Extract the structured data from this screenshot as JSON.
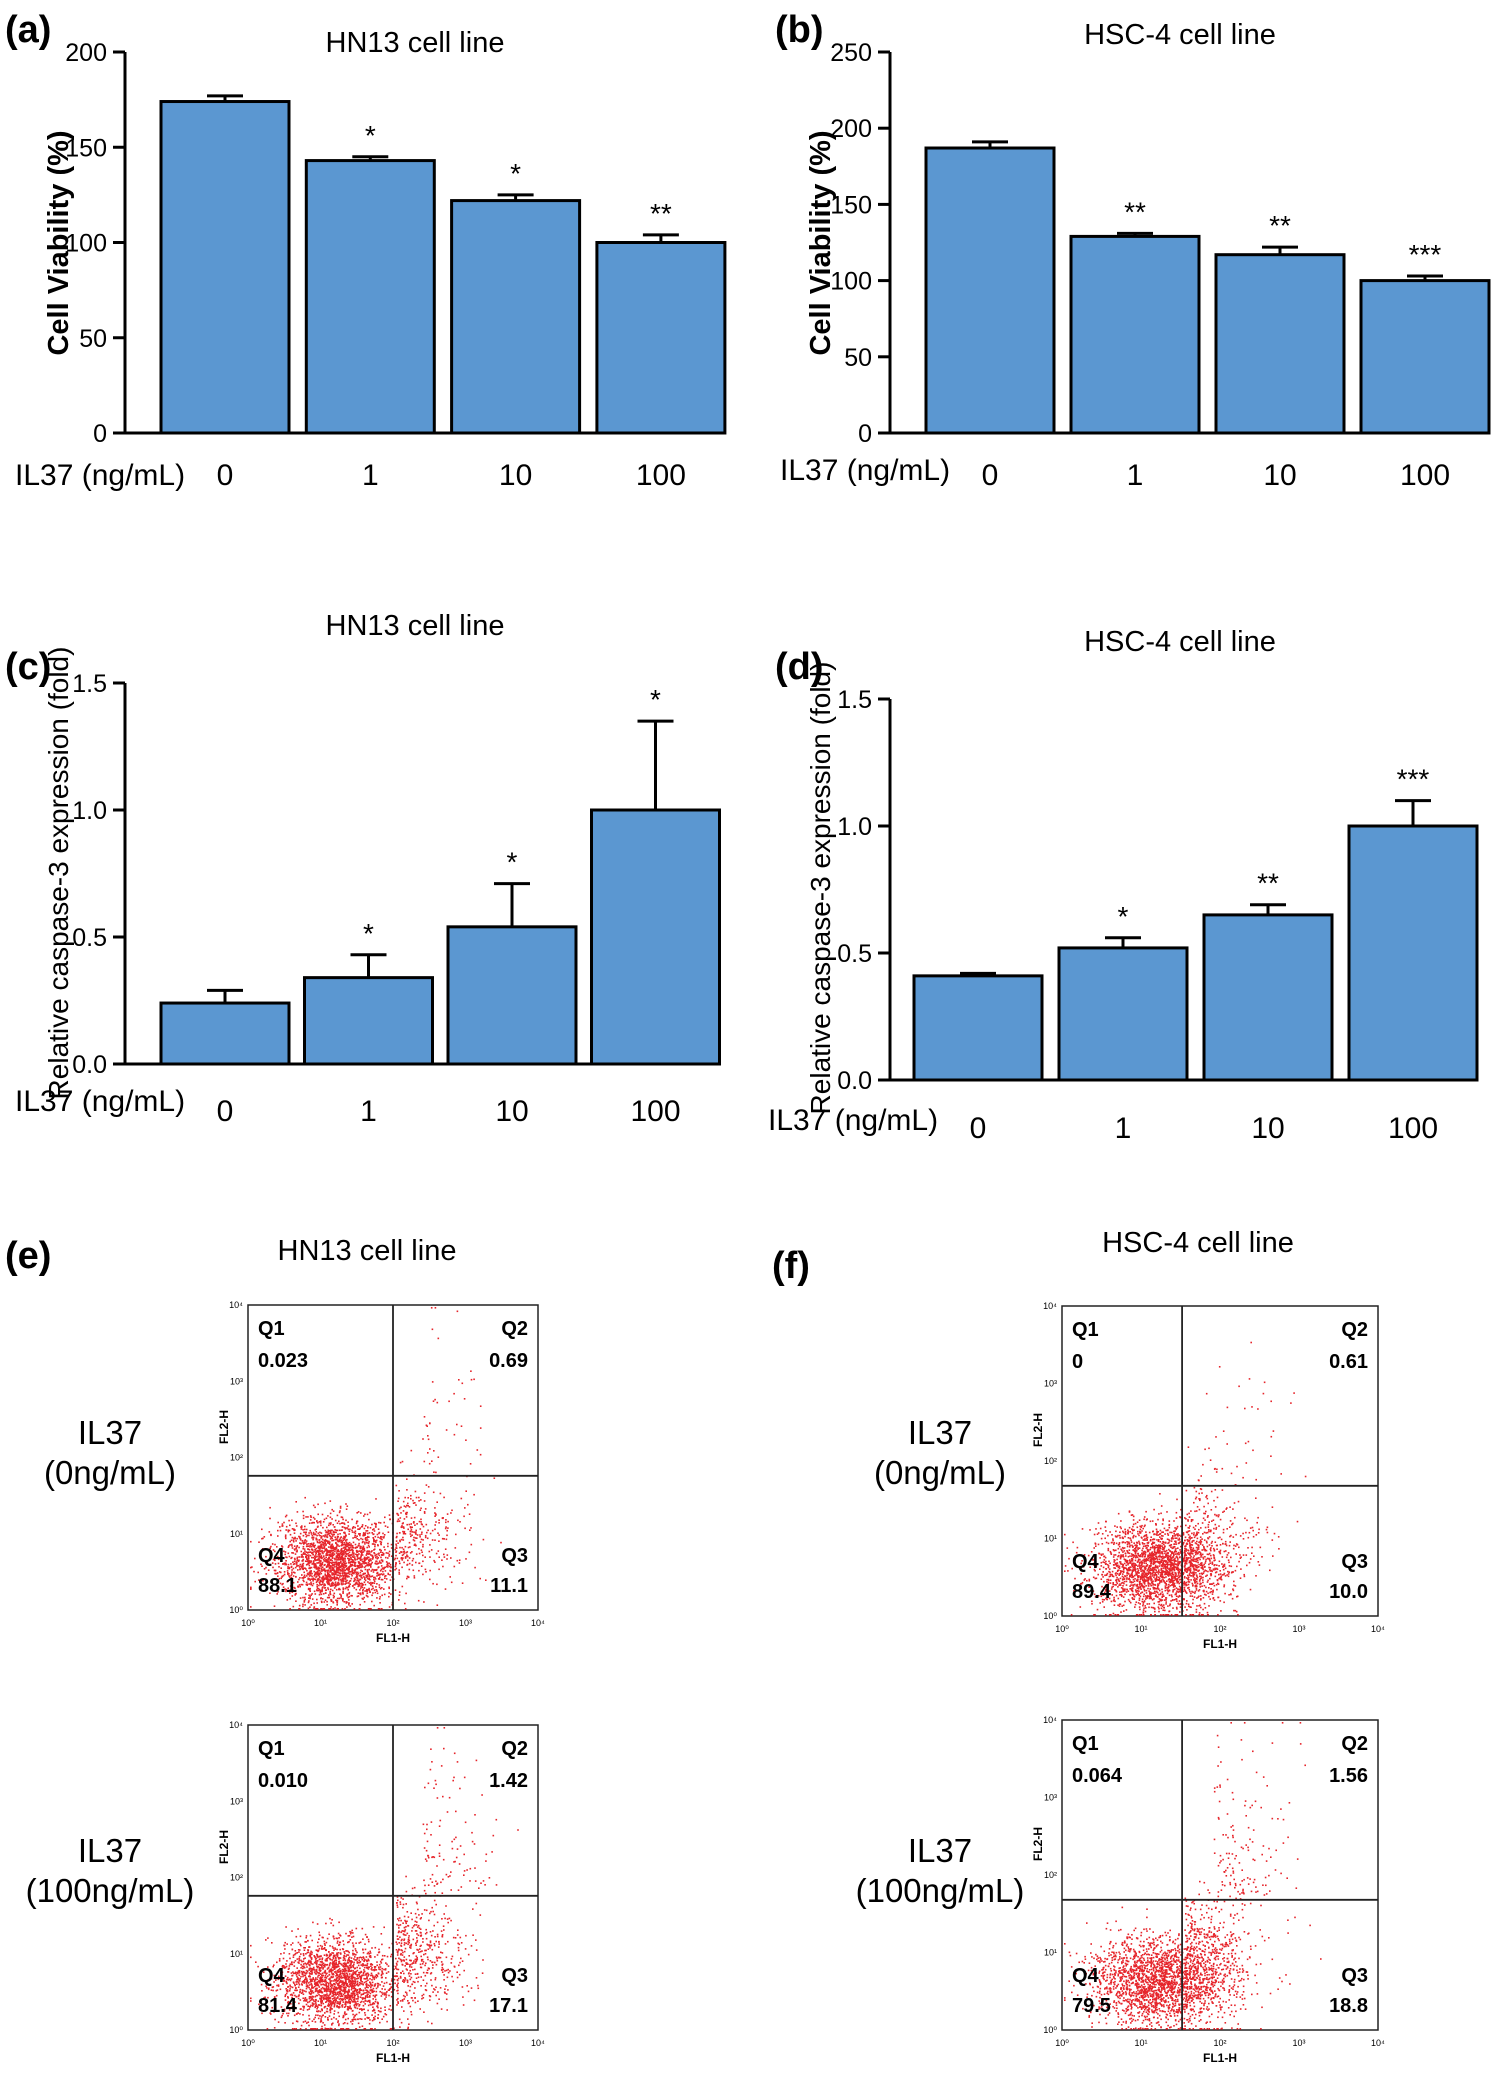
{
  "chart_data": [
    {
      "panel": "(a)",
      "type": "bar",
      "title": "HN13 cell line",
      "ylabel": "Cell Viability (%)",
      "xlabel": "IL37 (ng/mL)",
      "ylim": [
        0,
        200
      ],
      "yticks": [
        "0",
        "50",
        "100",
        "150",
        "200"
      ],
      "categories": [
        "0",
        "1",
        "10",
        "100"
      ],
      "values": [
        174,
        143,
        122,
        100
      ],
      "errors": [
        3,
        2,
        3,
        4
      ],
      "stars": [
        "",
        "*",
        "*",
        "**"
      ]
    },
    {
      "panel": "(b)",
      "type": "bar",
      "title": "HSC-4 cell line",
      "ylabel": "Cell Viability (%)",
      "xlabel": "IL37 (ng/mL)",
      "ylim": [
        0,
        250
      ],
      "yticks": [
        "0",
        "50",
        "100",
        "150",
        "200",
        "250"
      ],
      "categories": [
        "0",
        "1",
        "10",
        "100"
      ],
      "values": [
        187,
        129,
        117,
        100
      ],
      "errors": [
        4,
        2,
        5,
        3
      ],
      "stars": [
        "",
        "**",
        "**",
        "***"
      ]
    },
    {
      "panel": "(c)",
      "type": "bar",
      "title": "HN13 cell line",
      "ylabel": "Relative caspase-3 expression (fold)",
      "xlabel": "IL37 (ng/mL)",
      "ylim": [
        0,
        1.5
      ],
      "yticks": [
        "0.0",
        "0.5",
        "1.0",
        "1.5"
      ],
      "categories": [
        "0",
        "1",
        "10",
        "100"
      ],
      "values": [
        0.24,
        0.34,
        0.54,
        1.0
      ],
      "errors": [
        0.05,
        0.09,
        0.17,
        0.35
      ],
      "stars": [
        "",
        "*",
        "*",
        "*"
      ]
    },
    {
      "panel": "(d)",
      "type": "bar",
      "title": "HSC-4 cell line",
      "ylabel": "Relative caspase-3 expression (fold)",
      "xlabel": "IL37 (ng/mL)",
      "ylim": [
        0,
        1.5
      ],
      "yticks": [
        "0.0",
        "0.5",
        "1.0",
        "1.5"
      ],
      "categories": [
        "0",
        "1",
        "10",
        "100"
      ],
      "values": [
        0.41,
        0.52,
        0.65,
        1.0
      ],
      "errors": [
        0.01,
        0.04,
        0.04,
        0.1
      ],
      "stars": [
        "",
        "*",
        "**",
        "***"
      ]
    },
    {
      "panel": "(e)",
      "type": "scatter",
      "title": "HN13 cell line",
      "xlabel": "FL1-H",
      "ylabel": "FL2-H",
      "axis_ticks": [
        "10⁰",
        "10¹",
        "10²",
        "10³",
        "10⁴"
      ],
      "plots": [
        {
          "condition": [
            "IL37",
            "(0ng/mL)"
          ],
          "quadrants": {
            "q1_label": "Q1",
            "q1": "0.023",
            "q2_label": "Q2",
            "q2": "0.69",
            "q3_label": "Q3",
            "q3": "11.1",
            "q4_label": "Q4",
            "q4": "88.1"
          }
        },
        {
          "condition": [
            "IL37",
            "(100ng/mL)"
          ],
          "quadrants": {
            "q1_label": "Q1",
            "q1": "0.010",
            "q2_label": "Q2",
            "q2": "1.42",
            "q3_label": "Q3",
            "q3": "17.1",
            "q4_label": "Q4",
            "q4": "81.4"
          }
        }
      ]
    },
    {
      "panel": "(f)",
      "type": "scatter",
      "title": "HSC-4 cell line",
      "xlabel": "FL1-H",
      "ylabel": "FL2-H",
      "axis_ticks": [
        "10⁰",
        "10¹",
        "10²",
        "10³",
        "10⁴"
      ],
      "plots": [
        {
          "condition": [
            "IL37",
            "(0ng/mL)"
          ],
          "quadrants": {
            "q1_label": "Q1",
            "q1": "0",
            "q2_label": "Q2",
            "q2": "0.61",
            "q3_label": "Q3",
            "q3": "10.0",
            "q4_label": "Q4",
            "q4": "89.4"
          }
        },
        {
          "condition": [
            "IL37",
            "(100ng/mL)"
          ],
          "quadrants": {
            "q1_label": "Q1",
            "q1": "0.064",
            "q2_label": "Q2",
            "q2": "1.56",
            "q3_label": "Q3",
            "q3": "18.8",
            "q4_label": "Q4",
            "q4": "79.5"
          }
        }
      ]
    }
  ],
  "colors": {
    "bar": "#5b97d1",
    "dots": "#e6252b",
    "axis": "#000000"
  }
}
